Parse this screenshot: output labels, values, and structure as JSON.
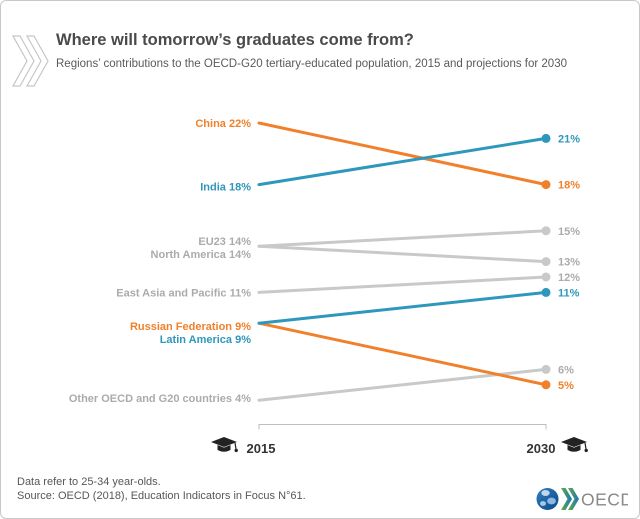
{
  "header": {
    "title": "Where will tomorrow’s graduates come from?",
    "subtitle": "Regions’ contributions to the OECD-G20 tertiary-educated population, 2015 and projections for 2030"
  },
  "chart_data": {
    "type": "line",
    "variant": "slopegraph",
    "title": "Where will tomorrow’s graduates come from?",
    "subtitle": "Regions’ contributions to the OECD-G20 tertiary-educated population, 2015 and projections for 2030",
    "x": [
      "2015",
      "2030"
    ],
    "unit": "%",
    "ylim": [
      4,
      22
    ],
    "grid": false,
    "legend": false,
    "series": [
      {
        "name": "China",
        "values": [
          22,
          18
        ],
        "color": "orange",
        "label_dy": 0
      },
      {
        "name": "India",
        "values": [
          18,
          21
        ],
        "color": "blue",
        "label_dy": 2
      },
      {
        "name": "EU23",
        "values": [
          14,
          15
        ],
        "color": "gray",
        "label_dy": -5
      },
      {
        "name": "North America",
        "values": [
          14,
          13
        ],
        "color": "gray",
        "label_dy": 8
      },
      {
        "name": "East Asia and Pacific",
        "values": [
          11,
          12
        ],
        "color": "gray",
        "label_dy": 0
      },
      {
        "name": "Russian Federation",
        "values": [
          9,
          5
        ],
        "color": "orange",
        "label_dy": 3
      },
      {
        "name": "Latin America",
        "values": [
          9,
          11
        ],
        "color": "blue",
        "label_dy": 16
      },
      {
        "name": "Other OECD and G20 countries",
        "values": [
          4,
          6
        ],
        "color": "gray",
        "label_dy": -2
      }
    ],
    "colors": {
      "orange": "#F0802B",
      "blue": "#2E97BC",
      "gray": "#C9C9C9",
      "gray_text": "#ABABAB"
    }
  },
  "footer": {
    "note": "Data refer to 25-34 year-olds.",
    "source": "Source: OECD (2018), Education Indicators in Focus N°61.",
    "logo_text": "OECD"
  }
}
